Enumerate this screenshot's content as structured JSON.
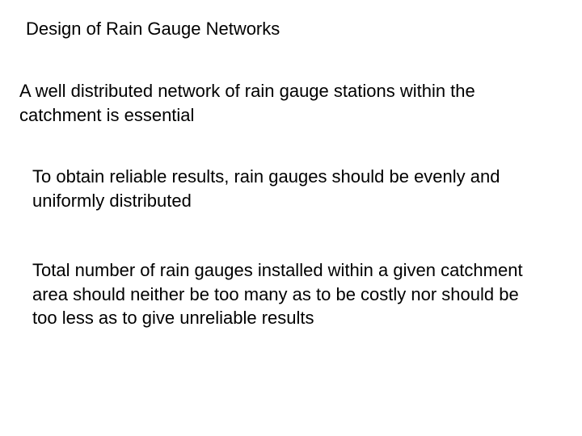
{
  "background_color": "#ffffff",
  "text_color": "#000000",
  "font_family": "Comic Sans MS",
  "title_fontsize": 22,
  "body_fontsize": 22,
  "title": "Design of Rain Gauge Networks",
  "paragraphs": {
    "p1": "A well distributed network of rain gauge stations within the catchment is essential",
    "p2": "To obtain reliable results, rain gauges should be evenly and uniformly distributed",
    "p3": "Total number of rain gauges installed within a given catchment area should neither be too many as to be costly nor should be too less as to give unreliable results"
  }
}
